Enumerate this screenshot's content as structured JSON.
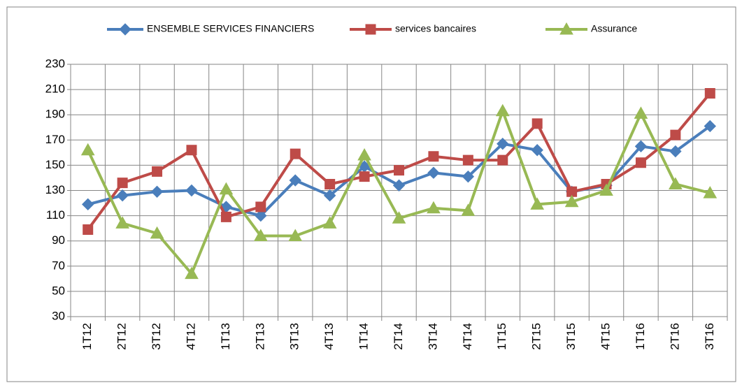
{
  "chart_data": {
    "type": "line",
    "categories": [
      "1T12",
      "2T12",
      "3T12",
      "4T12",
      "1T13",
      "2T13",
      "3T13",
      "4T13",
      "1T14",
      "2T14",
      "3T14",
      "4T14",
      "1T15",
      "2T15",
      "3T15",
      "4T15",
      "1T16",
      "2T16",
      "3T16"
    ],
    "series": [
      {
        "name": "ENSEMBLE SERVICES FINANCIERS",
        "color": "#4a7ebb",
        "marker": "diamond",
        "values": [
          119,
          126,
          129,
          130,
          117,
          110,
          138,
          126,
          149,
          134,
          144,
          141,
          167,
          162,
          129,
          134,
          165,
          161,
          181
        ]
      },
      {
        "name": "services bancaires",
        "color": "#be4b48",
        "marker": "square",
        "values": [
          99,
          136,
          145,
          162,
          109,
          117,
          159,
          135,
          141,
          146,
          157,
          154,
          154,
          183,
          129,
          135,
          152,
          174,
          207
        ]
      },
      {
        "name": "Assurance",
        "color": "#98b954",
        "marker": "triangle",
        "values": [
          162,
          104,
          96,
          64,
          131,
          94,
          94,
          104,
          158,
          108,
          116,
          114,
          193,
          119,
          121,
          130,
          191,
          135,
          128
        ]
      }
    ],
    "ylim": [
      30,
      230
    ],
    "yticks": [
      30,
      50,
      70,
      90,
      110,
      130,
      150,
      170,
      190,
      210,
      230
    ],
    "grid": true,
    "legend": "top"
  }
}
